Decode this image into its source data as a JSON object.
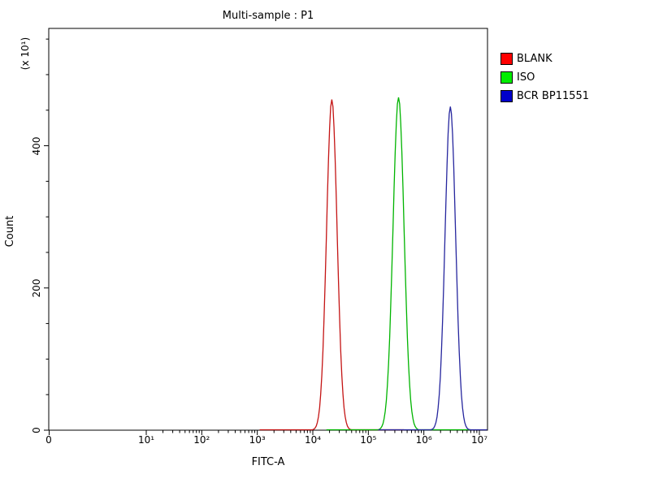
{
  "title": "Multi-sample : P1",
  "legend": {
    "items": [
      {
        "label": "BLANK",
        "color": "#ff0000"
      },
      {
        "label": "ISO",
        "color": "#00ee00"
      },
      {
        "label": "BCR BP11551",
        "color": "#0000cc"
      }
    ]
  },
  "axes": {
    "x": {
      "label": "FITC-A",
      "scale": "log",
      "tick_labels": [
        "0",
        "10¹",
        "10²",
        "10³",
        "10⁴",
        "10⁵",
        "10⁶",
        "10⁷"
      ],
      "decade_min": 1,
      "decade_max": 7
    },
    "y": {
      "label": "Count",
      "unit_label": "(x 10¹)",
      "tick_labels": [
        "0",
        "200",
        "400"
      ],
      "tick_values": [
        0,
        200,
        400
      ]
    }
  },
  "chart_data": {
    "type": "line",
    "title": "Multi-sample : P1",
    "xlabel": "FITC-A",
    "ylabel": "Count (x 10¹)",
    "x_scale": "log10",
    "x_range_decades": [
      1,
      7
    ],
    "ylim": [
      0,
      565
    ],
    "grid": false,
    "legend_position": "top-right",
    "series": [
      {
        "name": "BLANK",
        "color": "#c41414",
        "peak_center": 22000,
        "peak_count": 465,
        "sigma_decades": 0.095
      },
      {
        "name": "ISO",
        "color": "#00b400",
        "peak_center": 350000,
        "peak_count": 468,
        "sigma_decades": 0.1
      },
      {
        "name": "BCR BP11551",
        "color": "#26269e",
        "peak_center": 3000000,
        "peak_count": 455,
        "sigma_decades": 0.095
      }
    ]
  }
}
